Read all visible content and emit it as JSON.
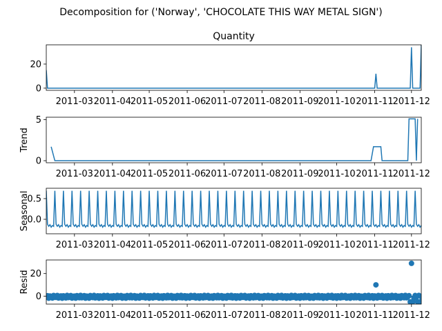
{
  "figure": {
    "suptitle": "Decomposition for ('Norway', 'CHOCOLATE THIS WAY METAL SIGN')"
  },
  "colors": {
    "series": "#1f77b4",
    "axis": "#000000"
  },
  "x_ticks": [
    "2011-03",
    "2011-04",
    "2011-05",
    "2011-06",
    "2011-07",
    "2011-08",
    "2011-09",
    "2011-10",
    "2011-11",
    "2011-12"
  ],
  "chart_data": [
    {
      "type": "line",
      "title": "Quantity",
      "ylabel": "",
      "xlim": [
        "2011-02-06",
        "2011-12-09"
      ],
      "ylim": [
        -1.8,
        36
      ],
      "yticks": [
        0,
        20
      ],
      "baseline": 0,
      "spikes": [
        {
          "x": "2011-02-06",
          "y": 15
        },
        {
          "x": "2011-11-02",
          "y": 12
        },
        {
          "x": "2011-12-01",
          "y": 34
        },
        {
          "x": "2011-12-09",
          "y": 36
        }
      ]
    },
    {
      "type": "line",
      "title": "",
      "ylabel": "Trend",
      "xlim": [
        "2011-02-06",
        "2011-12-09"
      ],
      "ylim": [
        -0.25,
        5.3
      ],
      "yticks": [
        0,
        5
      ],
      "points": [
        {
          "x": "2011-02-10",
          "y": 1.7
        },
        {
          "x": "2011-02-13",
          "y": 0
        },
        {
          "x": "2011-10-29",
          "y": 0
        },
        {
          "x": "2011-10-31",
          "y": 1.7
        },
        {
          "x": "2011-11-06",
          "y": 1.7
        },
        {
          "x": "2011-11-07",
          "y": 0
        },
        {
          "x": "2011-11-28",
          "y": 0
        },
        {
          "x": "2011-11-29",
          "y": 5.1
        },
        {
          "x": "2011-12-04",
          "y": 5.1
        },
        {
          "x": "2011-12-05",
          "y": 0
        },
        {
          "x": "2011-12-06",
          "y": 5.1
        }
      ]
    },
    {
      "type": "line",
      "title": "",
      "ylabel": "Seasonal",
      "xlim": [
        "2011-02-06",
        "2011-12-09"
      ],
      "ylim": [
        -0.35,
        0.75
      ],
      "yticks": [
        0.0,
        0.5
      ],
      "period_days": 7,
      "weekly_pattern": [
        0.69,
        -0.12,
        -0.17,
        -0.13,
        -0.19,
        -0.15,
        -0.17
      ]
    },
    {
      "type": "scatter",
      "title": "",
      "ylabel": "Resid",
      "xlim": [
        "2011-02-06",
        "2011-12-09"
      ],
      "ylim": [
        -7,
        32
      ],
      "yticks": [
        0,
        20
      ],
      "typical_range": [
        -1.8,
        0.7
      ],
      "outliers": [
        {
          "x": "2011-11-02",
          "y": 10
        },
        {
          "x": "2011-12-01",
          "y": 29
        },
        {
          "x": "2011-11-30",
          "y": -5
        },
        {
          "x": "2011-12-02",
          "y": -5
        },
        {
          "x": "2011-12-06",
          "y": -5
        },
        {
          "x": "2011-12-08",
          "y": -5
        }
      ]
    }
  ]
}
